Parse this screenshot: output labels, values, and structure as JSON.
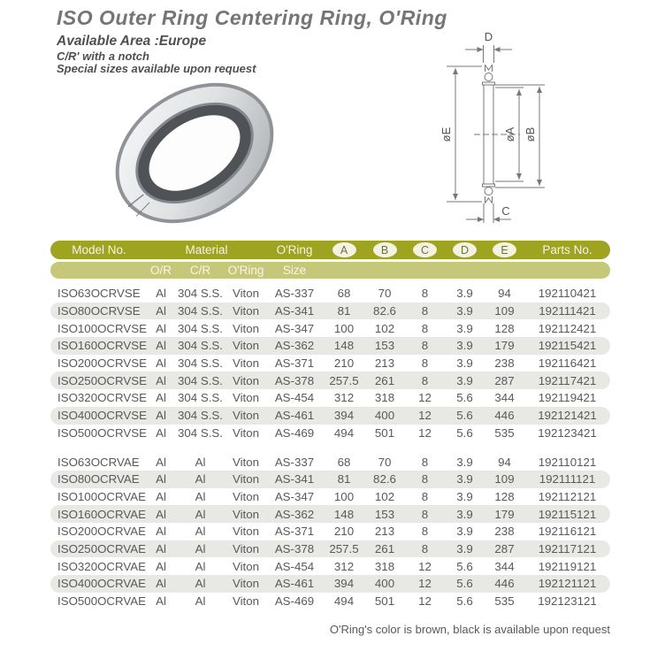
{
  "page": {
    "title": "ISO Outer Ring Centering Ring, O'Ring",
    "subtitle": "Available Area :Europe",
    "note1": "C/R' with a notch",
    "note2": "Special sizes available upon request",
    "footer": "O'Ring's color is brown, black is available upon request"
  },
  "colors": {
    "header_olive": "#9ea41f",
    "header_light_olive": "#c5c878",
    "badge_cream": "#f4f2e0",
    "row_shade": "#e8e8e4",
    "text_gray": "#595959"
  },
  "diagram": {
    "labels": {
      "d": "D",
      "e": "øE",
      "a": "øA",
      "b": "øB",
      "c": "C"
    }
  },
  "table": {
    "col_names": [
      "model",
      "or",
      "cr",
      "oring-material",
      "oring-size",
      "a",
      "b",
      "c",
      "d",
      "e",
      "parts"
    ],
    "header": {
      "model": "Model  No.",
      "material": "Material",
      "oring": "O'Ring",
      "or": "O/R",
      "cr": "C/R",
      "oring2": "O'Ring",
      "size": "Size",
      "parts": "Parts No.",
      "badges": [
        "A",
        "B",
        "C",
        "D",
        "E"
      ]
    },
    "groups": [
      {
        "rows": [
          [
            "ISO63OCRVSE",
            "Al",
            "304 S.S.",
            "Viton",
            "AS-337",
            "68",
            "70",
            "8",
            "3.9",
            "94",
            "192110421"
          ],
          [
            "ISO80OCRVSE",
            "Al",
            "304 S.S.",
            "Viton",
            "AS-341",
            "81",
            "82.6",
            "8",
            "3.9",
            "109",
            "192111421"
          ],
          [
            "ISO100OCRVSE",
            "Al",
            "304 S.S.",
            "Viton",
            "AS-347",
            "100",
            "102",
            "8",
            "3.9",
            "128",
            "192112421"
          ],
          [
            "ISO160OCRVSE",
            "Al",
            "304 S.S.",
            "Viton",
            "AS-362",
            "148",
            "153",
            "8",
            "3.9",
            "179",
            "192115421"
          ],
          [
            "ISO200OCRVSE",
            "Al",
            "304 S.S.",
            "Viton",
            "AS-371",
            "210",
            "213",
            "8",
            "3.9",
            "238",
            "192116421"
          ],
          [
            "ISO250OCRVSE",
            "Al",
            "304 S.S.",
            "Viton",
            "AS-378",
            "257.5",
            "261",
            "8",
            "3.9",
            "287",
            "192117421"
          ],
          [
            "ISO320OCRVSE",
            "Al",
            "304 S.S.",
            "Viton",
            "AS-454",
            "312",
            "318",
            "12",
            "5.6",
            "344",
            "192119421"
          ],
          [
            "ISO400OCRVSE",
            "Al",
            "304 S.S.",
            "Viton",
            "AS-461",
            "394",
            "400",
            "12",
            "5.6",
            "446",
            "192121421"
          ],
          [
            "ISO500OCRVSE",
            "Al",
            "304 S.S.",
            "Viton",
            "AS-469",
            "494",
            "501",
            "12",
            "5.6",
            "535",
            "192123421"
          ]
        ]
      },
      {
        "rows": [
          [
            "ISO63OCRVAE",
            "Al",
            "Al",
            "Viton",
            "AS-337",
            "68",
            "70",
            "8",
            "3.9",
            "94",
            "192110121"
          ],
          [
            "ISO80OCRVAE",
            "Al",
            "Al",
            "Viton",
            "AS-341",
            "81",
            "82.6",
            "8",
            "3.9",
            "109",
            "192111121"
          ],
          [
            "ISO100OCRVAE",
            "Al",
            "Al",
            "Viton",
            "AS-347",
            "100",
            "102",
            "8",
            "3.9",
            "128",
            "192112121"
          ],
          [
            "ISO160OCRVAE",
            "Al",
            "Al",
            "Viton",
            "AS-362",
            "148",
            "153",
            "8",
            "3.9",
            "179",
            "192115121"
          ],
          [
            "ISO200OCRVAE",
            "Al",
            "Al",
            "Viton",
            "AS-371",
            "210",
            "213",
            "8",
            "3.9",
            "238",
            "192116121"
          ],
          [
            "ISO250OCRVAE",
            "Al",
            "Al",
            "Viton",
            "AS-378",
            "257.5",
            "261",
            "8",
            "3.9",
            "287",
            "192117121"
          ],
          [
            "ISO320OCRVAE",
            "Al",
            "Al",
            "Viton",
            "AS-454",
            "312",
            "318",
            "12",
            "5.6",
            "344",
            "192119121"
          ],
          [
            "ISO400OCRVAE",
            "Al",
            "Al",
            "Viton",
            "AS-461",
            "394",
            "400",
            "12",
            "5.6",
            "446",
            "192121121"
          ],
          [
            "ISO500OCRVAE",
            "Al",
            "Al",
            "Viton",
            "AS-469",
            "494",
            "501",
            "12",
            "5.6",
            "535",
            "192123121"
          ]
        ]
      }
    ]
  }
}
